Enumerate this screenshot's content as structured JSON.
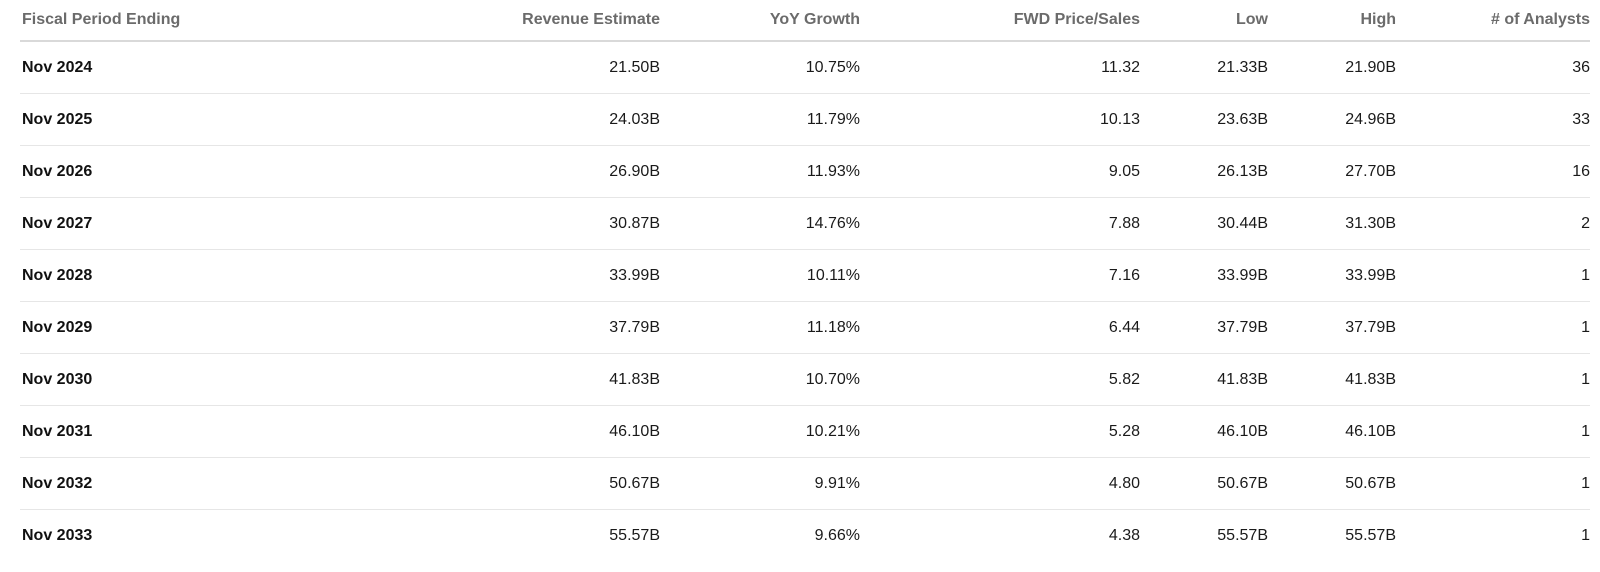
{
  "table": {
    "headers": [
      "Fiscal Period Ending",
      "Revenue Estimate",
      "YoY Growth",
      "FWD Price/Sales",
      "Low",
      "High",
      "# of Analysts"
    ],
    "rows": [
      [
        "Nov 2024",
        "21.50B",
        "10.75%",
        "11.32",
        "21.33B",
        "21.90B",
        "36"
      ],
      [
        "Nov 2025",
        "24.03B",
        "11.79%",
        "10.13",
        "23.63B",
        "24.96B",
        "33"
      ],
      [
        "Nov 2026",
        "26.90B",
        "11.93%",
        "9.05",
        "26.13B",
        "27.70B",
        "16"
      ],
      [
        "Nov 2027",
        "30.87B",
        "14.76%",
        "7.88",
        "30.44B",
        "31.30B",
        "2"
      ],
      [
        "Nov 2028",
        "33.99B",
        "10.11%",
        "7.16",
        "33.99B",
        "33.99B",
        "1"
      ],
      [
        "Nov 2029",
        "37.79B",
        "11.18%",
        "6.44",
        "37.79B",
        "37.79B",
        "1"
      ],
      [
        "Nov 2030",
        "41.83B",
        "10.70%",
        "5.82",
        "41.83B",
        "41.83B",
        "1"
      ],
      [
        "Nov 2031",
        "46.10B",
        "10.21%",
        "5.28",
        "46.10B",
        "46.10B",
        "1"
      ],
      [
        "Nov 2032",
        "50.67B",
        "9.91%",
        "4.80",
        "50.67B",
        "50.67B",
        "1"
      ],
      [
        "Nov 2033",
        "55.57B",
        "9.66%",
        "4.38",
        "55.57B",
        "55.57B",
        "1"
      ]
    ]
  }
}
